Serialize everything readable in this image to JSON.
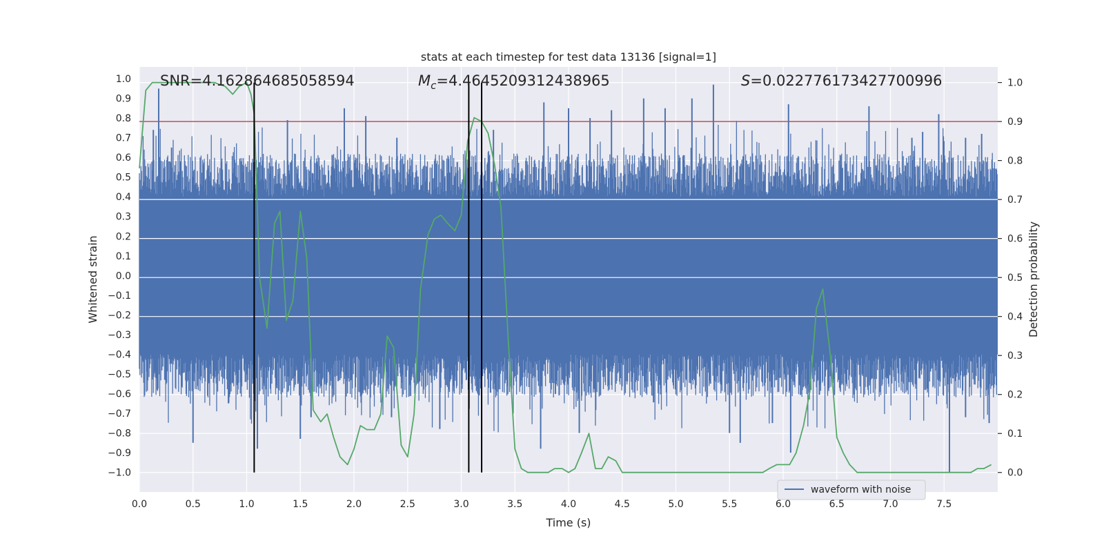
{
  "chart_data": {
    "type": "line",
    "title": "stats at each timestep for test data 13136 [signal=1]",
    "xlabel": "Time (s)",
    "ylabel_left": "Whitened strain",
    "ylabel_right": "Detection probability",
    "xlim": [
      0.0,
      8.0
    ],
    "ylim_left": [
      -1.1,
      1.06
    ],
    "ylim_right": [
      -0.05,
      1.04
    ],
    "x_ticks": [
      0.0,
      0.5,
      1.0,
      1.5,
      2.0,
      2.5,
      3.0,
      3.5,
      4.0,
      4.5,
      5.0,
      5.5,
      6.0,
      6.5,
      7.0,
      7.5
    ],
    "x_tick_labels": [
      "0.0",
      "0.5",
      "1.0",
      "1.5",
      "2.0",
      "2.5",
      "3.0",
      "3.5",
      "4.0",
      "4.5",
      "5.0",
      "5.5",
      "6.0",
      "6.5",
      "7.0",
      "7.5"
    ],
    "y_left_ticks": [
      -1.0,
      -0.9,
      -0.8,
      -0.7,
      -0.6,
      -0.5,
      -0.4,
      -0.3,
      -0.2,
      -0.1,
      0.0,
      0.1,
      0.2,
      0.3,
      0.4,
      0.5,
      0.6,
      0.7,
      0.8,
      0.9,
      1.0
    ],
    "y_left_tick_labels": [
      "−1.0",
      "−0.9",
      "−0.8",
      "−0.7",
      "−0.6",
      "−0.5",
      "−0.4",
      "−0.3",
      "−0.2",
      "−0.1",
      "0.0",
      "0.1",
      "0.2",
      "0.3",
      "0.4",
      "0.5",
      "0.6",
      "0.7",
      "0.8",
      "0.9",
      "1.0"
    ],
    "y_right_ticks": [
      0.0,
      0.1,
      0.2,
      0.3,
      0.4,
      0.5,
      0.6,
      0.7,
      0.8,
      0.9,
      1.0
    ],
    "y_right_tick_labels": [
      "0.0",
      "0.1",
      "0.2",
      "0.3",
      "0.4",
      "0.5",
      "0.6",
      "0.7",
      "0.8",
      "0.9",
      "1.0"
    ],
    "annotations": {
      "snr": "SNR=4.162864685058594",
      "mc_symbol": "M",
      "mc_subscript": "c",
      "mc_value": "=4.4645209312438965",
      "s_symbol": "S",
      "s_value": "=0.022776173427700996"
    },
    "legend": {
      "label": "waveform with noise",
      "position": "lower-right"
    },
    "threshold_probability": 0.9,
    "vertical_markers": [
      1.07,
      3.07,
      3.19
    ],
    "series": [
      {
        "name": "waveform with noise",
        "kind": "noise",
        "color": "#4c72b0",
        "sample_count": 1600,
        "noise_bounds": [
          -0.4,
          0.4
        ],
        "spike_peaks": [
          {
            "x": 0.18,
            "y": 0.95
          },
          {
            "x": 0.13,
            "y": 0.74
          },
          {
            "x": 0.3,
            "y": 0.65
          },
          {
            "x": 0.5,
            "y": -0.85
          },
          {
            "x": 0.83,
            "y": -0.65
          },
          {
            "x": 1.1,
            "y": -0.88
          },
          {
            "x": 1.38,
            "y": 0.79
          },
          {
            "x": 1.5,
            "y": -0.83
          },
          {
            "x": 1.6,
            "y": -0.72
          },
          {
            "x": 1.91,
            "y": 0.85
          },
          {
            "x": 2.11,
            "y": 0.81
          },
          {
            "x": 2.4,
            "y": 0.7
          },
          {
            "x": 2.35,
            "y": -0.72
          },
          {
            "x": 2.8,
            "y": -0.78
          },
          {
            "x": 3.3,
            "y": 0.74
          },
          {
            "x": 3.74,
            "y": -0.88
          },
          {
            "x": 3.77,
            "y": 0.88
          },
          {
            "x": 4.0,
            "y": 0.85
          },
          {
            "x": 4.1,
            "y": -0.8
          },
          {
            "x": 4.2,
            "y": 0.8
          },
          {
            "x": 4.4,
            "y": 0.84
          },
          {
            "x": 4.7,
            "y": 0.9
          },
          {
            "x": 4.9,
            "y": 0.85
          },
          {
            "x": 5.15,
            "y": 0.9
          },
          {
            "x": 5.35,
            "y": 0.97
          },
          {
            "x": 5.5,
            "y": -0.8
          },
          {
            "x": 5.6,
            "y": -0.85
          },
          {
            "x": 5.9,
            "y": -0.75
          },
          {
            "x": 6.05,
            "y": 0.87
          },
          {
            "x": 6.07,
            "y": -0.9
          },
          {
            "x": 6.8,
            "y": 0.86
          },
          {
            "x": 7.2,
            "y": 0.7
          },
          {
            "x": 7.3,
            "y": 0.73
          },
          {
            "x": 7.45,
            "y": 0.82
          },
          {
            "x": 7.55,
            "y": -1.0
          },
          {
            "x": 7.7,
            "y": 0.7
          },
          {
            "x": 7.7,
            "y": -0.72
          },
          {
            "x": 7.85,
            "y": 0.72
          },
          {
            "x": 7.92,
            "y": -0.75
          }
        ]
      },
      {
        "name": "detection probability",
        "kind": "line",
        "axis": "right",
        "color": "#55a868",
        "x": [
          0.0,
          0.06,
          0.12,
          0.2,
          0.3,
          0.4,
          0.5,
          0.6,
          0.7,
          0.8,
          0.87,
          0.93,
          1.0,
          1.04,
          1.07,
          1.12,
          1.19,
          1.26,
          1.31,
          1.37,
          1.43,
          1.5,
          1.56,
          1.62,
          1.69,
          1.75,
          1.81,
          1.87,
          1.94,
          2.0,
          2.06,
          2.12,
          2.19,
          2.25,
          2.31,
          2.37,
          2.44,
          2.5,
          2.56,
          2.62,
          2.69,
          2.75,
          2.81,
          2.87,
          2.94,
          3.0,
          3.06,
          3.12,
          3.19,
          3.25,
          3.31,
          3.37,
          3.44,
          3.5,
          3.56,
          3.62,
          3.69,
          3.75,
          3.81,
          3.87,
          3.94,
          4.0,
          4.06,
          4.12,
          4.19,
          4.25,
          4.31,
          4.37,
          4.44,
          4.5,
          4.56,
          4.62,
          4.69,
          4.75,
          4.81,
          4.87,
          4.94,
          5.0,
          5.06,
          5.12,
          5.19,
          5.25,
          5.31,
          5.37,
          5.44,
          5.5,
          5.56,
          5.62,
          5.69,
          5.75,
          5.81,
          5.87,
          5.94,
          6.0,
          6.06,
          6.12,
          6.19,
          6.25,
          6.31,
          6.37,
          6.44,
          6.5,
          6.56,
          6.62,
          6.69,
          6.75,
          6.81,
          6.87,
          6.94,
          7.0,
          7.06,
          7.12,
          7.19,
          7.25,
          7.31,
          7.37,
          7.44,
          7.5,
          7.56,
          7.62,
          7.69,
          7.75,
          7.81,
          7.87,
          7.94
        ],
        "y": [
          0.78,
          0.98,
          1.0,
          1.0,
          1.0,
          1.0,
          1.0,
          1.0,
          1.0,
          0.99,
          0.97,
          0.99,
          1.0,
          0.97,
          0.92,
          0.5,
          0.37,
          0.64,
          0.67,
          0.39,
          0.44,
          0.67,
          0.55,
          0.16,
          0.13,
          0.15,
          0.09,
          0.04,
          0.02,
          0.06,
          0.12,
          0.11,
          0.11,
          0.15,
          0.35,
          0.32,
          0.07,
          0.04,
          0.15,
          0.47,
          0.61,
          0.65,
          0.66,
          0.64,
          0.62,
          0.66,
          0.85,
          0.91,
          0.9,
          0.87,
          0.79,
          0.68,
          0.33,
          0.06,
          0.01,
          0.0,
          0.0,
          0.0,
          0.0,
          0.01,
          0.01,
          0.0,
          0.01,
          0.05,
          0.1,
          0.01,
          0.01,
          0.04,
          0.03,
          0.0,
          0.0,
          0.0,
          0.0,
          0.0,
          0.0,
          0.0,
          0.0,
          0.0,
          0.0,
          0.0,
          0.0,
          0.0,
          0.0,
          0.0,
          0.0,
          0.0,
          0.0,
          0.0,
          0.0,
          0.0,
          0.0,
          0.01,
          0.02,
          0.02,
          0.02,
          0.05,
          0.12,
          0.21,
          0.42,
          0.47,
          0.3,
          0.09,
          0.05,
          0.02,
          0.0,
          0.0,
          0.0,
          0.0,
          0.0,
          0.0,
          0.0,
          0.0,
          0.0,
          0.0,
          0.0,
          0.0,
          0.0,
          0.0,
          0.0,
          0.0,
          0.0,
          0.0,
          0.01,
          0.01,
          0.02
        ]
      }
    ]
  }
}
